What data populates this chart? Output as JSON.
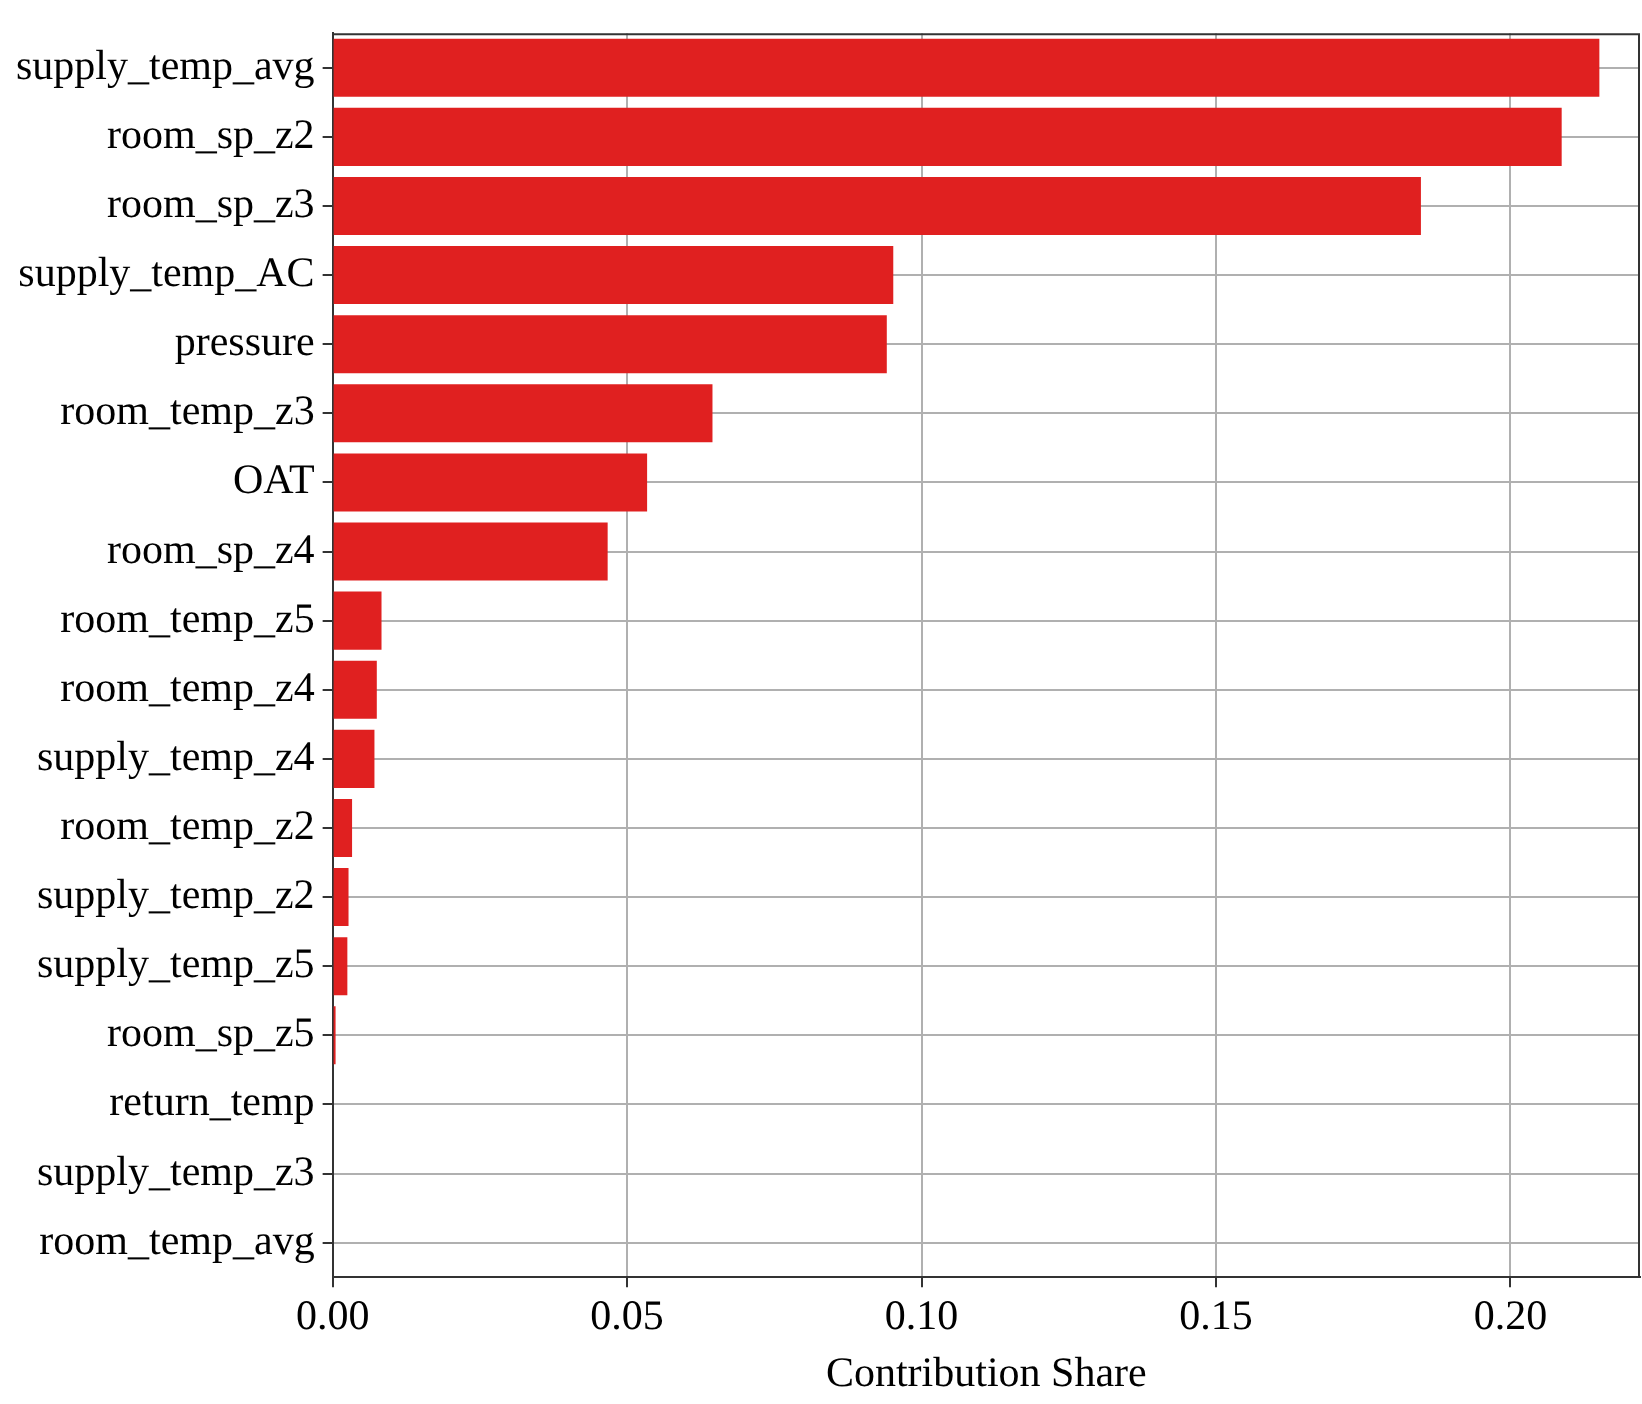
{
  "chart_data": {
    "type": "bar",
    "orientation": "horizontal",
    "xlabel": "Contribution Share",
    "categories": [
      "supply_temp_avg",
      "room_sp_z2",
      "room_sp_z3",
      "supply_temp_AC",
      "pressure",
      "room_temp_z3",
      "OAT",
      "room_sp_z4",
      "room_temp_z5",
      "room_temp_z4",
      "supply_temp_z4",
      "room_temp_z2",
      "supply_temp_z2",
      "supply_temp_z5",
      "room_sp_z5",
      "return_temp",
      "supply_temp_z3",
      "room_temp_avg"
    ],
    "values": [
      0.2151,
      0.2087,
      0.1848,
      0.0952,
      0.0941,
      0.0645,
      0.0534,
      0.0467,
      0.0083,
      0.0075,
      0.0071,
      0.0033,
      0.0027,
      0.0025,
      0.0005,
      0,
      0,
      0
    ],
    "color": "#e02020",
    "xlim": [
      0,
      0.222
    ],
    "xticks": [
      {
        "value": 0,
        "label": "0.00"
      },
      {
        "value": 0.05,
        "label": "0.05"
      },
      {
        "value": 0.1,
        "label": "0.10"
      },
      {
        "value": 0.15,
        "label": "0.15"
      },
      {
        "value": 0.2,
        "label": "0.20"
      }
    ],
    "grid": true,
    "legend": false
  }
}
